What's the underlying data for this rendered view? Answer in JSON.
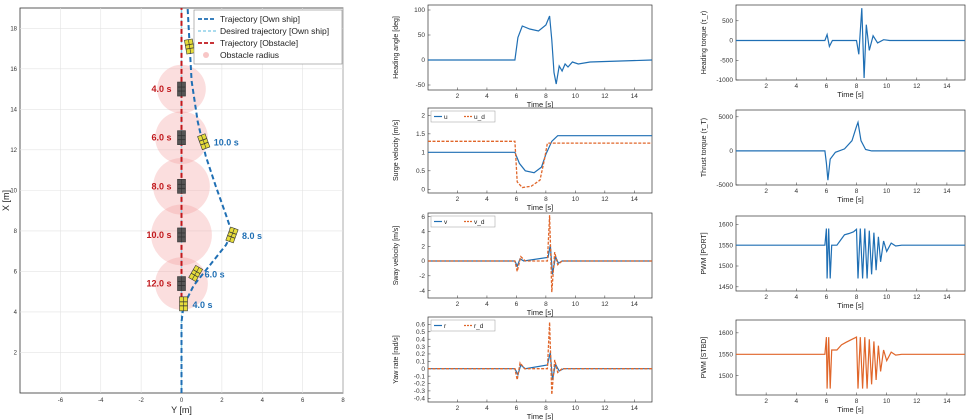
{
  "colors": {
    "own": "#1f6fb4",
    "desired": "#8fd0e8",
    "obstacle": "#c0181c",
    "radius": "#f4a0a0",
    "port": "#1f6fb4",
    "stbd": "#e0662a",
    "ref": "#e0662a",
    "grid": "#e3e3e3",
    "axis": "#333333",
    "ship": "#e6dc3a",
    "obs_ship": "#555555"
  },
  "chart_data": [
    {
      "id": "traj",
      "type": "trajectory",
      "xlabel": "Y [m]",
      "ylabel": "X [m]",
      "xlim": [
        -8,
        8
      ],
      "ylim": [
        0,
        19
      ],
      "xticks": [
        -6,
        -4,
        -2,
        0,
        2,
        4,
        6,
        8
      ],
      "yticks": [
        2,
        4,
        6,
        8,
        10,
        12,
        14,
        16,
        18
      ],
      "legend": [
        "Trajectory [Own ship]",
        "Desired trajectory [Own ship]",
        "Trajectory [Obstacle]",
        "Obstacle radius"
      ],
      "own_path": [
        [
          0,
          0
        ],
        [
          0,
          2
        ],
        [
          0,
          3.5
        ],
        [
          0.1,
          4.3
        ],
        [
          0.6,
          5.3
        ],
        [
          1.4,
          6.3
        ],
        [
          2.2,
          7.3
        ],
        [
          2.5,
          7.9
        ],
        [
          2.2,
          8.8
        ],
        [
          1.7,
          10.2
        ],
        [
          1.2,
          11.7
        ],
        [
          0.8,
          13.4
        ],
        [
          0.5,
          15.4
        ],
        [
          0.4,
          17.2
        ],
        [
          0.3,
          19
        ]
      ],
      "desired_path": [
        [
          0,
          0
        ],
        [
          0,
          19
        ]
      ],
      "obstacle_path": [
        [
          0,
          4.3
        ],
        [
          0,
          19
        ]
      ],
      "own_labels": [
        {
          "t": "4.0 s",
          "x": 0.1,
          "y": 4.4
        },
        {
          "t": "6.0 s",
          "x": 0.7,
          "y": 5.9
        },
        {
          "t": "8.0 s",
          "x": 2.5,
          "y": 7.8
        },
        {
          "t": "10.0 s",
          "x": 1.1,
          "y": 12.4
        },
        {
          "t": "12.0 s",
          "x": 0.4,
          "y": 17.1
        }
      ],
      "obs_labels": [
        {
          "t": "4.0 s",
          "x": 0,
          "y": 15.0,
          "r": 1.2
        },
        {
          "t": "6.0 s",
          "x": 0,
          "y": 12.6,
          "r": 1.3
        },
        {
          "t": "8.0 s",
          "x": 0,
          "y": 10.2,
          "r": 1.4
        },
        {
          "t": "10.0 s",
          "x": 0,
          "y": 7.8,
          "r": 1.5
        },
        {
          "t": "12.0 s",
          "x": 0,
          "y": 5.4,
          "r": 1.3
        }
      ]
    },
    {
      "id": "heading",
      "type": "line",
      "ylabel": "Heading angle [deg]",
      "xlabel": "Time [s]",
      "xlim": [
        0,
        15.2
      ],
      "ylim": [
        -60,
        110
      ],
      "yticks": [
        -50,
        0,
        50,
        100
      ],
      "xticks": [
        2,
        4,
        6,
        8,
        10,
        12,
        14
      ],
      "series": [
        {
          "values": [
            [
              0,
              0
            ],
            [
              5.9,
              0
            ],
            [
              6.1,
              45
            ],
            [
              6.4,
              68
            ],
            [
              6.9,
              62
            ],
            [
              7.5,
              58
            ],
            [
              8.0,
              70
            ],
            [
              8.25,
              88
            ],
            [
              8.4,
              40
            ],
            [
              8.55,
              -25
            ],
            [
              8.7,
              -48
            ],
            [
              8.9,
              -12
            ],
            [
              9.1,
              -22
            ],
            [
              9.3,
              -8
            ],
            [
              9.5,
              -14
            ],
            [
              9.8,
              -4
            ],
            [
              10.2,
              -8
            ],
            [
              11,
              -4
            ],
            [
              15.2,
              0
            ]
          ]
        }
      ]
    },
    {
      "id": "surge",
      "type": "line",
      "ylabel": "Surge velocity [m/s]",
      "xlabel": "Time [s]",
      "xlim": [
        0,
        15.2
      ],
      "ylim": [
        -0.1,
        2.2
      ],
      "yticks": [
        0,
        0.5,
        1,
        1.5,
        2
      ],
      "xticks": [
        2,
        4,
        6,
        8,
        10,
        12,
        14
      ],
      "legend": [
        "u",
        "u_d"
      ],
      "series": [
        {
          "name": "u",
          "values": [
            [
              0,
              1.0
            ],
            [
              5.9,
              1.0
            ],
            [
              6.2,
              0.7
            ],
            [
              6.6,
              0.5
            ],
            [
              7.2,
              0.45
            ],
            [
              7.7,
              0.6
            ],
            [
              8.0,
              0.95
            ],
            [
              8.4,
              1.3
            ],
            [
              8.8,
              1.45
            ],
            [
              15.2,
              1.45
            ]
          ]
        },
        {
          "name": "u_d",
          "dashed": true,
          "values": [
            [
              0,
              1.3
            ],
            [
              5.9,
              1.3
            ],
            [
              6.05,
              0.2
            ],
            [
              6.4,
              0.05
            ],
            [
              7.0,
              0.08
            ],
            [
              7.6,
              0.25
            ],
            [
              7.9,
              0.8
            ],
            [
              8.1,
              1.25
            ],
            [
              15.2,
              1.25
            ]
          ]
        }
      ]
    },
    {
      "id": "sway",
      "type": "line",
      "ylabel": "Sway velocity [m/s]",
      "xlabel": "Time [s]",
      "xlim": [
        0,
        15.2
      ],
      "ylim": [
        -5,
        6.5
      ],
      "yticks": [
        -4,
        -2,
        0,
        2,
        4,
        6
      ],
      "xticks": [
        2,
        4,
        6,
        8,
        10,
        12,
        14
      ],
      "legend": [
        "v",
        "v_d"
      ],
      "series": [
        {
          "name": "v",
          "values": [
            [
              0,
              0
            ],
            [
              5.9,
              0
            ],
            [
              6.05,
              -0.7
            ],
            [
              6.25,
              0.3
            ],
            [
              6.5,
              0
            ],
            [
              8.15,
              0.5
            ],
            [
              8.3,
              2.2
            ],
            [
              8.45,
              -1.8
            ],
            [
              8.65,
              0.6
            ],
            [
              8.85,
              -0.3
            ],
            [
              9.1,
              0
            ],
            [
              15.2,
              0
            ]
          ]
        },
        {
          "name": "v_d",
          "dashed": true,
          "values": [
            [
              0,
              0
            ],
            [
              5.9,
              0
            ],
            [
              6.05,
              -1.4
            ],
            [
              6.3,
              0.6
            ],
            [
              6.6,
              0
            ],
            [
              8.1,
              0
            ],
            [
              8.25,
              6.2
            ],
            [
              8.4,
              -4.2
            ],
            [
              8.6,
              1.2
            ],
            [
              8.8,
              -0.5
            ],
            [
              9.1,
              0
            ],
            [
              15.2,
              0
            ]
          ]
        }
      ]
    },
    {
      "id": "yaw",
      "type": "line",
      "ylabel": "Yaw rate [rad/s]",
      "xlabel": "Time [s]",
      "xlim": [
        0,
        15.2
      ],
      "ylim": [
        -0.45,
        0.7
      ],
      "yticks": [
        -0.4,
        -0.3,
        -0.2,
        -0.1,
        0,
        0.1,
        0.2,
        0.3,
        0.4,
        0.5,
        0.6
      ],
      "xticks": [
        2,
        4,
        6,
        8,
        10,
        12,
        14
      ],
      "legend": [
        "r",
        "r_d"
      ],
      "series": [
        {
          "name": "r",
          "values": [
            [
              0,
              0
            ],
            [
              5.9,
              0
            ],
            [
              6.1,
              -0.08
            ],
            [
              6.3,
              0.05
            ],
            [
              6.6,
              0
            ],
            [
              8.1,
              0.05
            ],
            [
              8.3,
              0.22
            ],
            [
              8.45,
              -0.15
            ],
            [
              8.65,
              0.06
            ],
            [
              8.9,
              -0.03
            ],
            [
              9.2,
              0
            ],
            [
              15.2,
              0
            ]
          ]
        },
        {
          "name": "r_d",
          "dashed": true,
          "values": [
            [
              0,
              0
            ],
            [
              5.9,
              0
            ],
            [
              6.05,
              -0.15
            ],
            [
              6.25,
              0.08
            ],
            [
              6.55,
              0
            ],
            [
              8.1,
              0
            ],
            [
              8.25,
              0.63
            ],
            [
              8.4,
              -0.35
            ],
            [
              8.6,
              0.12
            ],
            [
              8.8,
              -0.05
            ],
            [
              9.1,
              0
            ],
            [
              15.2,
              0
            ]
          ]
        }
      ]
    },
    {
      "id": "htorque",
      "type": "line",
      "ylabel": "Heading torque (τ_r)",
      "xlabel": "Time [s]",
      "xlim": [
        0,
        15.2
      ],
      "ylim": [
        -1000,
        900
      ],
      "yticks": [
        -1000,
        -500,
        0,
        500
      ],
      "xticks": [
        2,
        4,
        6,
        8,
        10,
        12,
        14
      ],
      "series": [
        {
          "values": [
            [
              0,
              0
            ],
            [
              5.9,
              0
            ],
            [
              6.05,
              150
            ],
            [
              6.2,
              -150
            ],
            [
              6.4,
              0
            ],
            [
              8.0,
              0
            ],
            [
              8.15,
              -350
            ],
            [
              8.35,
              820
            ],
            [
              8.5,
              -950
            ],
            [
              8.65,
              400
            ],
            [
              8.85,
              -250
            ],
            [
              9.1,
              120
            ],
            [
              9.4,
              -60
            ],
            [
              9.8,
              20
            ],
            [
              10.2,
              0
            ],
            [
              15.2,
              0
            ]
          ]
        }
      ]
    },
    {
      "id": "thrust",
      "type": "line",
      "ylabel": "Thrust torque (τ_T)",
      "xlabel": "Time [s]",
      "xlim": [
        0,
        15.2
      ],
      "ylim": [
        -5000,
        6000
      ],
      "yticks": [
        -5000,
        0,
        5000
      ],
      "xticks": [
        2,
        4,
        6,
        8,
        10,
        12,
        14
      ],
      "series": [
        {
          "values": [
            [
              0,
              0
            ],
            [
              5.9,
              0
            ],
            [
              6.0,
              -1800
            ],
            [
              6.1,
              -4300
            ],
            [
              6.25,
              -1200
            ],
            [
              6.6,
              -200
            ],
            [
              7.2,
              300
            ],
            [
              7.7,
              1500
            ],
            [
              8.0,
              3600
            ],
            [
              8.1,
              4200
            ],
            [
              8.3,
              1500
            ],
            [
              8.6,
              200
            ],
            [
              9.0,
              0
            ],
            [
              15.2,
              0
            ]
          ]
        }
      ]
    },
    {
      "id": "pwm_port",
      "type": "line",
      "ylabel": "PWM [PORT]",
      "xlabel": "Time [s]",
      "xlim": [
        0,
        15.2
      ],
      "ylim": [
        1440,
        1620
      ],
      "yticks": [
        1450,
        1500,
        1550,
        1600
      ],
      "xticks": [
        2,
        4,
        6,
        8,
        10,
        12,
        14
      ],
      "series": [
        {
          "values": [
            [
              0,
              1550
            ],
            [
              5.9,
              1550
            ],
            [
              6.0,
              1590
            ],
            [
              6.05,
              1470
            ],
            [
              6.15,
              1590
            ],
            [
              6.25,
              1470
            ],
            [
              6.35,
              1550
            ],
            [
              6.7,
              1550
            ],
            [
              7.0,
              1565
            ],
            [
              7.2,
              1575
            ],
            [
              7.5,
              1578
            ],
            [
              7.8,
              1582
            ],
            [
              8.0,
              1588
            ],
            [
              8.1,
              1470
            ],
            [
              8.25,
              1590
            ],
            [
              8.4,
              1470
            ],
            [
              8.55,
              1590
            ],
            [
              8.7,
              1470
            ],
            [
              8.85,
              1585
            ],
            [
              9.0,
              1480
            ],
            [
              9.15,
              1580
            ],
            [
              9.3,
              1490
            ],
            [
              9.45,
              1570
            ],
            [
              9.6,
              1510
            ],
            [
              9.8,
              1560
            ],
            [
              10.0,
              1535
            ],
            [
              10.3,
              1555
            ],
            [
              10.6,
              1548
            ],
            [
              11,
              1550
            ],
            [
              15.2,
              1550
            ]
          ]
        }
      ]
    },
    {
      "id": "pwm_stbd",
      "type": "line",
      "ylabel": "PWM [STBD]",
      "xlabel": "Time [s]",
      "xlim": [
        0,
        15.2
      ],
      "ylim": [
        1455,
        1630
      ],
      "yticks": [
        1500,
        1550,
        1600
      ],
      "xticks": [
        2,
        4,
        6,
        8,
        10,
        12,
        14
      ],
      "series": [
        {
          "values": [
            [
              0,
              1550
            ],
            [
              5.9,
              1550
            ],
            [
              6.0,
              1590
            ],
            [
              6.05,
              1470
            ],
            [
              6.15,
              1590
            ],
            [
              6.25,
              1470
            ],
            [
              6.35,
              1560
            ],
            [
              6.7,
              1560
            ],
            [
              7.0,
              1572
            ],
            [
              7.3,
              1578
            ],
            [
              7.7,
              1585
            ],
            [
              8.0,
              1590
            ],
            [
              8.1,
              1470
            ],
            [
              8.25,
              1590
            ],
            [
              8.4,
              1470
            ],
            [
              8.55,
              1590
            ],
            [
              8.7,
              1470
            ],
            [
              8.85,
              1585
            ],
            [
              9.0,
              1480
            ],
            [
              9.15,
              1580
            ],
            [
              9.3,
              1490
            ],
            [
              9.45,
              1570
            ],
            [
              9.6,
              1510
            ],
            [
              9.8,
              1560
            ],
            [
              10.0,
              1535
            ],
            [
              10.3,
              1555
            ],
            [
              10.6,
              1548
            ],
            [
              11,
              1550
            ],
            [
              15.2,
              1550
            ]
          ]
        }
      ]
    }
  ]
}
